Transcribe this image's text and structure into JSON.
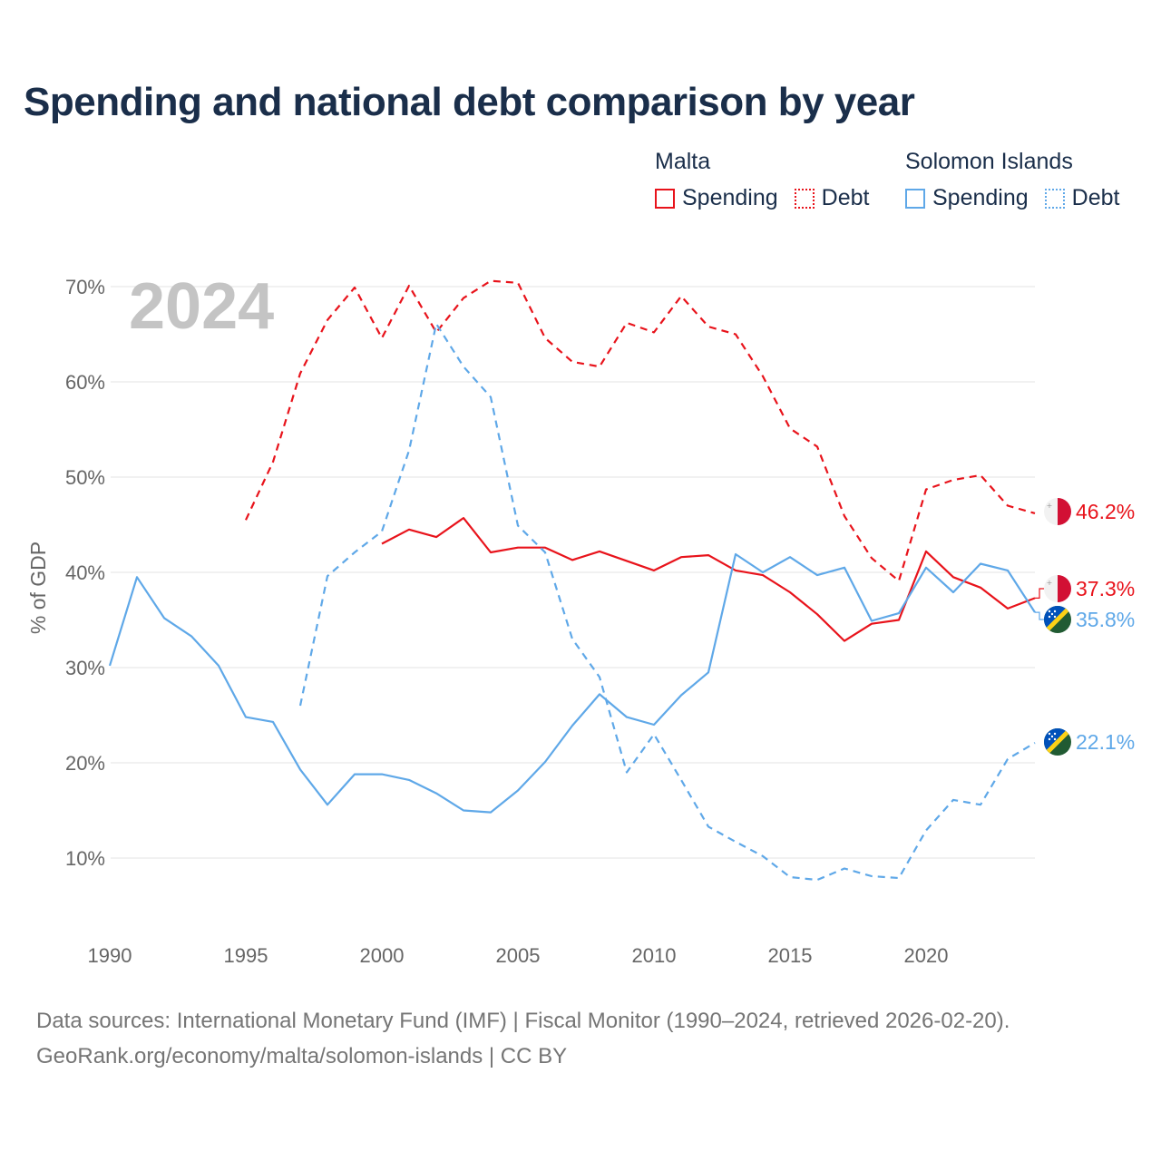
{
  "title": "Spending and national debt comparison by year",
  "legend": {
    "malta": {
      "name": "Malta",
      "spending": "Spending",
      "debt": "Debt"
    },
    "solomon": {
      "name": "Solomon Islands",
      "spending": "Spending",
      "debt": "Debt"
    }
  },
  "year_watermark": "2024",
  "colors": {
    "malta": "#e8131b",
    "solomon": "#5fa8e8",
    "title": "#1a2e4a"
  },
  "chart_data": {
    "type": "line",
    "title": "Spending and national debt comparison by year",
    "xlabel": "",
    "ylabel": "% of GDP",
    "xlim": [
      1990,
      2024
    ],
    "ylim": [
      3,
      72
    ],
    "x_ticks": [
      1990,
      1995,
      2000,
      2005,
      2010,
      2015,
      2020
    ],
    "y_ticks": [
      {
        "value": 10,
        "label": "10%"
      },
      {
        "value": 20,
        "label": "20%"
      },
      {
        "value": 30,
        "label": "30%"
      },
      {
        "value": 40,
        "label": "40%"
      },
      {
        "value": 50,
        "label": "50%"
      },
      {
        "value": 60,
        "label": "60%"
      },
      {
        "value": 70,
        "label": "70%"
      }
    ],
    "grid": true,
    "series": [
      {
        "name": "Malta Debt",
        "country": "malta",
        "dash": true,
        "x": [
          1995,
          1996,
          1997,
          1998,
          1999,
          2000,
          2001,
          2002,
          2003,
          2004,
          2005,
          2006,
          2007,
          2008,
          2009,
          2010,
          2011,
          2012,
          2013,
          2014,
          2015,
          2016,
          2017,
          2018,
          2019,
          2020,
          2021,
          2022,
          2023,
          2024
        ],
        "values": [
          45.5,
          51.6,
          60.9,
          66.5,
          69.9,
          64.6,
          70.1,
          65.2,
          68.8,
          70.6,
          70.4,
          64.6,
          62.1,
          61.6,
          66.2,
          65.2,
          69.0,
          65.8,
          65.0,
          60.6,
          55.1,
          53.2,
          45.9,
          41.5,
          39.1,
          48.7,
          49.7,
          50.2,
          47.0,
          46.2
        ],
        "end_label": "46.2%"
      },
      {
        "name": "Malta Spending",
        "country": "malta",
        "dash": false,
        "x": [
          2000,
          2001,
          2002,
          2003,
          2004,
          2005,
          2006,
          2007,
          2008,
          2009,
          2010,
          2011,
          2012,
          2013,
          2014,
          2015,
          2016,
          2017,
          2018,
          2019,
          2020,
          2021,
          2022,
          2023,
          2024
        ],
        "values": [
          43.0,
          44.5,
          43.7,
          45.7,
          42.1,
          42.6,
          42.6,
          41.3,
          42.2,
          41.2,
          40.2,
          41.6,
          41.8,
          40.2,
          39.7,
          37.9,
          35.6,
          32.8,
          34.6,
          35.0,
          42.2,
          39.5,
          38.4,
          36.2,
          37.3
        ],
        "end_label": "37.3%"
      },
      {
        "name": "Solomon Islands Debt",
        "country": "solomon",
        "dash": true,
        "x": [
          1997,
          1998,
          1999,
          2000,
          2001,
          2002,
          2003,
          2004,
          2005,
          2006,
          2007,
          2008,
          2009,
          2010,
          2011,
          2012,
          2013,
          2014,
          2015,
          2016,
          2017,
          2018,
          2019,
          2020,
          2021,
          2022,
          2023,
          2024
        ],
        "values": [
          26.0,
          39.6,
          42.1,
          44.3,
          52.8,
          66.1,
          61.6,
          58.4,
          44.9,
          42.1,
          33.0,
          29.0,
          19.0,
          23.0,
          18.2,
          13.3,
          11.7,
          10.2,
          8.0,
          7.7,
          8.9,
          8.1,
          7.9,
          12.9,
          16.1,
          15.6,
          20.4,
          22.1
        ],
        "end_label": "22.1%"
      },
      {
        "name": "Solomon Islands Spending",
        "country": "solomon",
        "dash": false,
        "x": [
          1990,
          1991,
          1992,
          1993,
          1994,
          1995,
          1996,
          1997,
          1998,
          1999,
          2000,
          2001,
          2002,
          2003,
          2004,
          2005,
          2006,
          2007,
          2008,
          2009,
          2010,
          2011,
          2012,
          2013,
          2014,
          2015,
          2016,
          2017,
          2018,
          2019,
          2020,
          2021,
          2022,
          2023,
          2024
        ],
        "values": [
          30.2,
          39.5,
          35.2,
          33.3,
          30.2,
          24.8,
          24.3,
          19.3,
          15.6,
          18.8,
          18.8,
          18.2,
          16.8,
          15.0,
          14.8,
          17.1,
          20.1,
          23.9,
          27.2,
          24.8,
          24.0,
          27.1,
          29.5,
          41.9,
          40.0,
          41.6,
          39.7,
          40.5,
          34.9,
          35.7,
          40.5,
          37.9,
          40.9,
          40.2,
          35.8
        ],
        "end_label": "35.8%"
      }
    ]
  },
  "footer": {
    "line1": "Data sources: International Monetary Fund (IMF) | Fiscal Monitor (1990–2024, retrieved 2026-02-20).",
    "line2": "GeoRank.org/economy/malta/solomon-islands | CC BY"
  }
}
